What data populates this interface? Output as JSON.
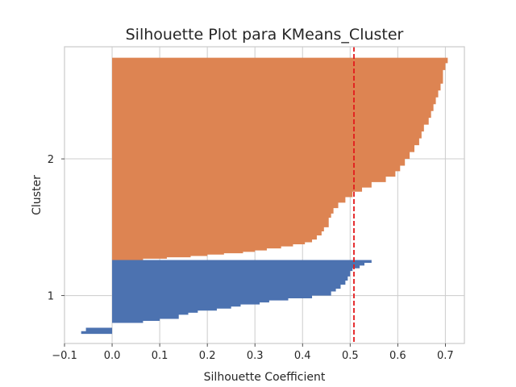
{
  "chart_data": {
    "type": "bar",
    "orientation": "horizontal",
    "title": "Silhouette Plot para KMeans_Cluster",
    "xlabel": "Silhouette Coefficient",
    "ylabel": "Cluster",
    "xlim": [
      -0.1,
      0.74
    ],
    "ylim": [
      0.65,
      2.82
    ],
    "x_ticks": [
      "−0.1",
      "0.0",
      "0.1",
      "0.2",
      "0.3",
      "0.4",
      "0.5",
      "0.6",
      "0.7"
    ],
    "y_ticks": [
      "1",
      "2"
    ],
    "grid": true,
    "average_silhouette": 0.508,
    "average_line_color": "#e31a1c",
    "series": [
      {
        "name": "1",
        "color": "#4c72b0",
        "y_range": [
          0.72,
          1.26
        ],
        "steps": [
          [
            0.72,
            -0.065
          ],
          [
            0.74,
            -0.055
          ],
          [
            0.765,
            0.0
          ],
          [
            0.79,
            0.0
          ],
          [
            0.8,
            0.065
          ],
          [
            0.815,
            0.1
          ],
          [
            0.83,
            0.14
          ],
          [
            0.86,
            0.16
          ],
          [
            0.875,
            0.18
          ],
          [
            0.89,
            0.22
          ],
          [
            0.905,
            0.25
          ],
          [
            0.92,
            0.27
          ],
          [
            0.935,
            0.31
          ],
          [
            0.95,
            0.33
          ],
          [
            0.965,
            0.37
          ],
          [
            0.98,
            0.42
          ],
          [
            1.0,
            0.46
          ],
          [
            1.03,
            0.47
          ],
          [
            1.05,
            0.48
          ],
          [
            1.08,
            0.49
          ],
          [
            1.11,
            0.495
          ],
          [
            1.14,
            0.5
          ],
          [
            1.18,
            0.505
          ],
          [
            1.2,
            0.52
          ],
          [
            1.22,
            0.53
          ],
          [
            1.24,
            0.545
          ],
          [
            1.26,
            0.545
          ]
        ]
      },
      {
        "name": "2",
        "color": "#dd8452",
        "y_range": [
          1.26,
          2.74
        ],
        "steps": [
          [
            1.26,
            0.065
          ],
          [
            1.27,
            0.115
          ],
          [
            1.28,
            0.165
          ],
          [
            1.29,
            0.2
          ],
          [
            1.3,
            0.235
          ],
          [
            1.31,
            0.275
          ],
          [
            1.32,
            0.3
          ],
          [
            1.33,
            0.325
          ],
          [
            1.345,
            0.355
          ],
          [
            1.36,
            0.38
          ],
          [
            1.375,
            0.405
          ],
          [
            1.39,
            0.42
          ],
          [
            1.41,
            0.43
          ],
          [
            1.44,
            0.44
          ],
          [
            1.47,
            0.445
          ],
          [
            1.5,
            0.455
          ],
          [
            1.53,
            0.455
          ],
          [
            1.55,
            0.455
          ],
          [
            1.57,
            0.46
          ],
          [
            1.6,
            0.465
          ],
          [
            1.64,
            0.475
          ],
          [
            1.68,
            0.49
          ],
          [
            1.72,
            0.505
          ],
          [
            1.76,
            0.525
          ],
          [
            1.79,
            0.545
          ],
          [
            1.83,
            0.575
          ],
          [
            1.87,
            0.595
          ],
          [
            1.91,
            0.605
          ],
          [
            1.95,
            0.615
          ],
          [
            2.0,
            0.625
          ],
          [
            2.05,
            0.635
          ],
          [
            2.1,
            0.645
          ],
          [
            2.15,
            0.65
          ],
          [
            2.2,
            0.655
          ],
          [
            2.25,
            0.665
          ],
          [
            2.3,
            0.67
          ],
          [
            2.35,
            0.675
          ],
          [
            2.4,
            0.68
          ],
          [
            2.45,
            0.685
          ],
          [
            2.5,
            0.69
          ],
          [
            2.55,
            0.695
          ],
          [
            2.6,
            0.695
          ],
          [
            2.65,
            0.7
          ],
          [
            2.7,
            0.705
          ],
          [
            2.74,
            0.705
          ]
        ]
      }
    ]
  }
}
